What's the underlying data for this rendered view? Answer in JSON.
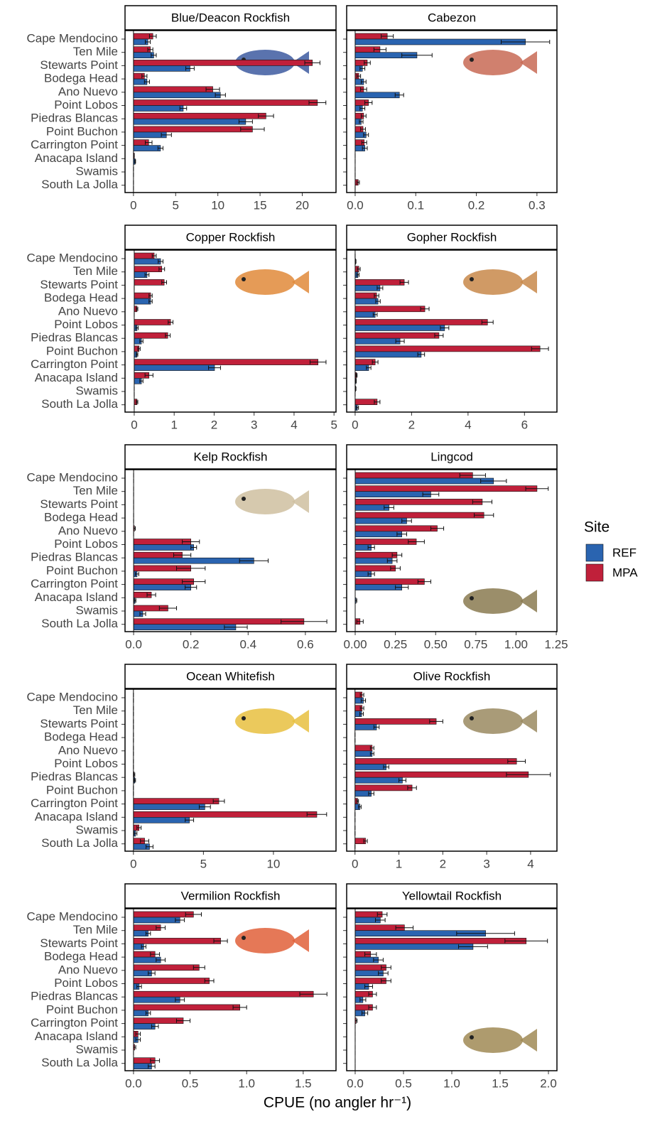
{
  "x_label": "CPUE (no angler hr⁻¹)",
  "legend_title": "Site",
  "chart_data": [
    {
      "type": "bar",
      "orientation": "horizontal",
      "title": "Blue/Deacon Rockfish",
      "categories": [
        "Cape Mendocino",
        "Ten Mile",
        "Stewarts Point",
        "Bodega Head",
        "Ano Nuevo",
        "Point Lobos",
        "Piedras Blancas",
        "Point Buchon",
        "Carrington Point",
        "Anacapa Island",
        "Swamis",
        "South La Jolla"
      ],
      "xlim": [
        -1.0,
        24.0
      ],
      "xticks": [
        0,
        5,
        10,
        15,
        20
      ],
      "series": [
        {
          "name": "MPA",
          "color": "#c0203a",
          "values": [
            2.3,
            2.0,
            21.2,
            1.3,
            9.4,
            21.8,
            15.7,
            14.1,
            1.8,
            0.1,
            0,
            0
          ],
          "errors": [
            0.4,
            0.3,
            0.9,
            0.3,
            0.8,
            1.0,
            0.9,
            1.4,
            0.4,
            0,
            0,
            0
          ]
        },
        {
          "name": "REF",
          "color": "#2a64b0",
          "values": [
            1.7,
            2.4,
            6.7,
            1.6,
            10.3,
            5.9,
            13.3,
            3.9,
            3.2,
            0.2,
            0,
            0
          ],
          "errors": [
            0.3,
            0.3,
            0.5,
            0.3,
            0.6,
            0.4,
            0.8,
            0.6,
            0.3,
            0.05,
            0,
            0
          ]
        }
      ]
    },
    {
      "type": "bar",
      "orientation": "horizontal",
      "title": "Cabezon",
      "xlim": [
        -0.014,
        0.333
      ],
      "xticks": [
        {
          "value": 0,
          "label": "0.0"
        },
        0.1,
        0.2,
        0.3
      ],
      "series": [
        {
          "name": "MPA",
          "color": "#c0203a",
          "values": [
            0.053,
            0.041,
            0.02,
            0.006,
            0.014,
            0.022,
            0.014,
            0.013,
            0.015,
            0,
            0,
            0.005
          ],
          "errors": [
            0.01,
            0.01,
            0.005,
            0.003,
            0.005,
            0.006,
            0.004,
            0.004,
            0.004,
            0,
            0,
            0.002
          ]
        },
        {
          "name": "REF",
          "color": "#2a64b0",
          "values": [
            0.281,
            0.102,
            0.012,
            0.014,
            0.073,
            0.012,
            0.01,
            0.018,
            0.016,
            0,
            0,
            0
          ],
          "errors": [
            0.04,
            0.025,
            0.004,
            0.004,
            0.007,
            0.004,
            0.003,
            0.004,
            0.004,
            0,
            0,
            0
          ]
        }
      ]
    },
    {
      "type": "bar",
      "orientation": "horizontal",
      "title": "Copper Rockfish",
      "categories": [
        "Cape Mendocino",
        "Ten Mile",
        "Stewarts Point",
        "Bodega Head",
        "Ano Nuevo",
        "Point Lobos",
        "Piedras Blancas",
        "Point Buchon",
        "Carrington Point",
        "Anacapa Island",
        "Swamis",
        "South La Jolla"
      ],
      "xlim": [
        -0.23,
        5.05
      ],
      "xticks": [
        0,
        1,
        2,
        3,
        4,
        5
      ],
      "series": [
        {
          "name": "MPA",
          "color": "#c0203a",
          "values": [
            0.5,
            0.69,
            0.75,
            0.41,
            0.07,
            0.91,
            0.84,
            0.12,
            4.6,
            0.37,
            0,
            0.07
          ],
          "errors": [
            0.05,
            0.07,
            0.06,
            0.04,
            0.02,
            0.06,
            0.06,
            0.03,
            0.2,
            0.1,
            0,
            0.02
          ]
        },
        {
          "name": "REF",
          "color": "#2a64b0",
          "values": [
            0.66,
            0.32,
            0,
            0.41,
            0,
            0.07,
            0.18,
            0.07,
            2.01,
            0.18,
            0,
            0
          ],
          "errors": [
            0.06,
            0.05,
            0,
            0.04,
            0,
            0.03,
            0.04,
            0.02,
            0.15,
            0.04,
            0,
            0
          ]
        }
      ]
    },
    {
      "type": "bar",
      "orientation": "horizontal",
      "title": "Gopher Rockfish",
      "xlim": [
        -0.3,
        7.15
      ],
      "xticks": [
        0,
        2,
        4,
        6
      ],
      "series": [
        {
          "name": "MPA",
          "color": "#c0203a",
          "values": [
            0,
            0.13,
            1.74,
            0.76,
            2.47,
            4.69,
            2.97,
            6.55,
            0.71,
            0.05,
            0.02,
            0.78
          ],
          "errors": [
            0,
            0.05,
            0.15,
            0.08,
            0.15,
            0.2,
            0.15,
            0.3,
            0.1,
            0.02,
            0.01,
            0.1
          ]
        },
        {
          "name": "REF",
          "color": "#2a64b0",
          "values": [
            0.02,
            0.1,
            0.88,
            0.81,
            0.71,
            3.17,
            1.59,
            2.34,
            0.48,
            0.03,
            0,
            0.08
          ],
          "errors": [
            0.01,
            0.04,
            0.1,
            0.08,
            0.07,
            0.15,
            0.15,
            0.12,
            0.08,
            0.01,
            0,
            0.04
          ]
        }
      ]
    },
    {
      "type": "bar",
      "orientation": "horizontal",
      "title": "Kelp Rockfish",
      "categories": [
        "Cape Mendocino",
        "Ten Mile",
        "Stewarts Point",
        "Bodega Head",
        "Ano Nuevo",
        "Point Lobos",
        "Piedras Blancas",
        "Point Buchon",
        "Carrington Point",
        "Anacapa Island",
        "Swamis",
        "South La Jolla"
      ],
      "xlim": [
        -0.03,
        0.707
      ],
      "xticks": [
        {
          "value": 0,
          "label": "0.0"
        },
        0.2,
        0.4,
        0.6
      ],
      "series": [
        {
          "name": "MPA",
          "color": "#c0203a",
          "values": [
            0,
            0,
            0,
            0,
            0.003,
            0.2,
            0.17,
            0.2,
            0.21,
            0.062,
            0.12,
            0.595
          ],
          "errors": [
            0,
            0,
            0,
            0,
            0.003,
            0.03,
            0.03,
            0.05,
            0.04,
            0.015,
            0.03,
            0.08
          ]
        },
        {
          "name": "REF",
          "color": "#2a64b0",
          "values": [
            0,
            0,
            0,
            0,
            0,
            0.21,
            0.42,
            0.012,
            0.2,
            0.005,
            0.032,
            0.357
          ],
          "errors": [
            0,
            0,
            0,
            0,
            0,
            0.01,
            0.05,
            0.006,
            0.02,
            0.003,
            0.01,
            0.04
          ]
        }
      ]
    },
    {
      "type": "bar",
      "orientation": "horizontal",
      "title": "Lingcod",
      "xlim": [
        -0.053,
        1.254
      ],
      "xticks": [
        {
          "value": 0,
          "label": "0.00"
        },
        0.25,
        {
          "value": 0.5,
          "label": "0.50"
        },
        0.75,
        {
          "value": 1,
          "label": "1.00"
        },
        1.25
      ],
      "series": [
        {
          "name": "MPA",
          "color": "#c0203a",
          "values": [
            0.73,
            1.13,
            0.79,
            0.8,
            0.51,
            0.38,
            0.26,
            0.25,
            0.43,
            0,
            0,
            0.03
          ],
          "errors": [
            0.08,
            0.07,
            0.06,
            0.06,
            0.04,
            0.05,
            0.03,
            0.03,
            0.04,
            0,
            0,
            0.02
          ]
        },
        {
          "name": "REF",
          "color": "#2a64b0",
          "values": [
            0.86,
            0.47,
            0.21,
            0.32,
            0.29,
            0.1,
            0.23,
            0.1,
            0.29,
            0.005,
            0,
            0
          ],
          "errors": [
            0.08,
            0.05,
            0.03,
            0.03,
            0.03,
            0.02,
            0.03,
            0.02,
            0.04,
            0.005,
            0,
            0
          ]
        }
      ]
    },
    {
      "type": "bar",
      "orientation": "horizontal",
      "title": "Ocean Whitefish",
      "categories": [
        "Cape Mendocino",
        "Ten Mile",
        "Stewarts Point",
        "Bodega Head",
        "Ano Nuevo",
        "Point Lobos",
        "Piedras Blancas",
        "Point Buchon",
        "Carrington Point",
        "Anacapa Island",
        "Swamis",
        "South La Jolla"
      ],
      "xlim": [
        -0.6,
        14.47
      ],
      "xticks": [
        0,
        5,
        10
      ],
      "series": [
        {
          "name": "MPA",
          "color": "#c0203a",
          "values": [
            0,
            0,
            0,
            0,
            0,
            0,
            0.05,
            0,
            6.1,
            13.1,
            0.4,
            0.8
          ],
          "errors": [
            0,
            0,
            0,
            0,
            0,
            0,
            0.05,
            0,
            0.4,
            0.7,
            0.15,
            0.3
          ]
        },
        {
          "name": "REF",
          "color": "#2a64b0",
          "values": [
            0,
            0,
            0,
            0,
            0,
            0,
            0.1,
            0,
            5.1,
            4.0,
            0.15,
            1.15
          ],
          "errors": [
            0,
            0,
            0,
            0,
            0,
            0,
            0.05,
            0,
            0.4,
            0.3,
            0.1,
            0.25
          ]
        }
      ]
    },
    {
      "type": "bar",
      "orientation": "horizontal",
      "title": "Olive Rockfish",
      "xlim": [
        -0.19,
        4.6
      ],
      "xticks": [
        0,
        1,
        2,
        3,
        4
      ],
      "series": [
        {
          "name": "MPA",
          "color": "#c0203a",
          "values": [
            0.16,
            0.16,
            1.85,
            0,
            0.39,
            3.68,
            3.95,
            1.3,
            0.06,
            0,
            0,
            0.24
          ],
          "errors": [
            0.04,
            0.04,
            0.15,
            0,
            0.04,
            0.2,
            0.5,
            0.1,
            0.02,
            0,
            0,
            0.04
          ]
        },
        {
          "name": "REF",
          "color": "#2a64b0",
          "values": [
            0.19,
            0.15,
            0.49,
            0,
            0.39,
            0.71,
            1.08,
            0.37,
            0.11,
            0,
            0,
            0
          ],
          "errors": [
            0.05,
            0.04,
            0.06,
            0,
            0.04,
            0.06,
            0.08,
            0.06,
            0.03,
            0,
            0,
            0
          ]
        }
      ]
    },
    {
      "type": "bar",
      "orientation": "horizontal",
      "title": "Vermilion Rockfish",
      "categories": [
        "Cape Mendocino",
        "Ten Mile",
        "Stewarts Point",
        "Bodega Head",
        "Ano Nuevo",
        "Point Lobos",
        "Piedras Blancas",
        "Point Buchon",
        "Carrington Point",
        "Anacapa Island",
        "Swamis",
        "South La Jolla"
      ],
      "xlim": [
        -0.075,
        1.79
      ],
      "xticks": [
        {
          "value": 0,
          "label": "0.0"
        },
        0.5,
        {
          "value": 1,
          "label": "1.0"
        },
        1.5
      ],
      "series": [
        {
          "name": "MPA",
          "color": "#c0203a",
          "values": [
            0.53,
            0.24,
            0.77,
            0.19,
            0.58,
            0.67,
            1.59,
            0.94,
            0.44,
            0.04,
            0.01,
            0.19
          ],
          "errors": [
            0.07,
            0.04,
            0.06,
            0.04,
            0.05,
            0.04,
            0.12,
            0.06,
            0.06,
            0.02,
            0.01,
            0.04
          ]
        },
        {
          "name": "REF",
          "color": "#2a64b0",
          "values": [
            0.41,
            0.13,
            0.09,
            0.24,
            0.16,
            0.05,
            0.41,
            0.13,
            0.19,
            0.04,
            0,
            0.16
          ],
          "errors": [
            0.04,
            0.02,
            0.02,
            0.04,
            0.03,
            0.02,
            0.04,
            0.02,
            0.03,
            0.02,
            0,
            0.03
          ]
        }
      ]
    },
    {
      "type": "bar",
      "orientation": "horizontal",
      "title": "Yellowtail Rockfish",
      "xlim": [
        -0.088,
        2.088
      ],
      "xticks": [
        {
          "value": 0,
          "label": "0.0"
        },
        0.5,
        {
          "value": 1,
          "label": "1.0"
        },
        1.5,
        {
          "value": 2,
          "label": "2.0"
        }
      ],
      "series": [
        {
          "name": "MPA",
          "color": "#c0203a",
          "values": [
            0.28,
            0.51,
            1.77,
            0.16,
            0.32,
            0.32,
            0.18,
            0.18,
            0.01,
            0,
            0,
            0
          ],
          "errors": [
            0.05,
            0.09,
            0.22,
            0.06,
            0.05,
            0.05,
            0.04,
            0.04,
            0.01,
            0,
            0,
            0
          ]
        },
        {
          "name": "REF",
          "color": "#2a64b0",
          "values": [
            0.26,
            1.35,
            1.22,
            0.24,
            0.29,
            0.14,
            0.08,
            0.1,
            0,
            0,
            0,
            0
          ],
          "errors": [
            0.05,
            0.3,
            0.15,
            0.05,
            0.05,
            0.04,
            0.03,
            0.03,
            0,
            0,
            0,
            0
          ]
        }
      ]
    }
  ]
}
